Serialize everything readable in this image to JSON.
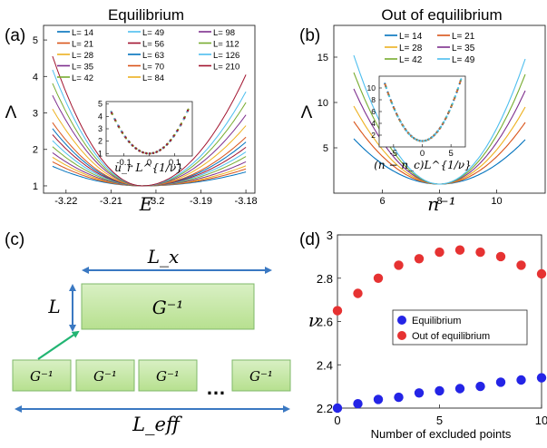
{
  "panels": {
    "a": {
      "tag": "(a)",
      "title": "Equilibrium",
      "xlabel": "E",
      "ylabel": "Λ",
      "inset_xlabel": "u_r L^{1/ν}"
    },
    "b": {
      "tag": "(b)",
      "title": "Out of equilibrium",
      "xlabel": "n⁻¹",
      "ylabel": "Λ",
      "inset_xlabel": "(n − n_c)L^{1/ν}"
    },
    "c": {
      "tag": "(c)",
      "g_inv": "G⁻¹",
      "lx": "L_x",
      "l": "L",
      "leff": "L_eff",
      "dots": "…"
    },
    "d": {
      "tag": "(d)",
      "xlabel": "Number of excluded points",
      "ylabel": "ν"
    }
  },
  "colors": [
    "#0072BD",
    "#D95319",
    "#EDB120",
    "#7E2F8E",
    "#77AC30",
    "#4DBEEE",
    "#A2142F",
    "#0072BD",
    "#D95319",
    "#EDB120",
    "#7E2F8E",
    "#77AC30",
    "#4DBEEE",
    "#A2142F"
  ],
  "chart_data": [
    {
      "id": "a",
      "type": "line",
      "title": "Equilibrium",
      "xlabel": "E",
      "ylabel": "Λ",
      "xlim": [
        -3.225,
        -3.178
      ],
      "ylim": [
        0.8,
        5.4
      ],
      "xticks": [
        -3.22,
        -3.21,
        -3.2,
        -3.19,
        -3.18
      ],
      "xticklabels": [
        "-3.22",
        "-3.21",
        "-3.2",
        "-3.19",
        "-3.18"
      ],
      "yticks": [
        1,
        2,
        3,
        4,
        5
      ],
      "yticklabels": [
        "1",
        "2",
        "3",
        "4",
        "5"
      ],
      "legend_position": "top",
      "series_labels": [
        "L= 14",
        "L= 21",
        "L= 28",
        "L= 35",
        "L= 42",
        "L= 49",
        "L= 56",
        "L= 63",
        "L= 70",
        "L= 84",
        "L= 98",
        "L= 112",
        "L= 126",
        "L= 210"
      ],
      "xc": -3.203,
      "lambda_c": 1.0,
      "edge_values": {
        "left": [
          1.65,
          1.8,
          1.95,
          2.1,
          2.3,
          2.5,
          2.7,
          2.9,
          3.1,
          3.55,
          4.0,
          4.4,
          4.85,
          5.3
        ],
        "right": [
          1.45,
          1.55,
          1.65,
          1.78,
          1.95,
          2.1,
          2.25,
          2.42,
          2.58,
          2.95,
          3.3,
          3.7,
          4.05,
          4.6
        ]
      },
      "inset": {
        "xlabel": "u_r L^{1/ν}",
        "xlim": [
          -0.17,
          0.17
        ],
        "ylim": [
          0.8,
          5.2
        ],
        "xticks": [
          -0.1,
          0,
          0.1
        ],
        "xticklabels": [
          "-0.1",
          "0",
          "0.1"
        ],
        "yticks": [
          1,
          2,
          3,
          4,
          5
        ],
        "yticklabels": [
          "1",
          "2",
          "3",
          "4",
          "5"
        ]
      }
    },
    {
      "id": "b",
      "type": "line",
      "title": "Out of equilibrium",
      "xlabel": "n⁻¹",
      "ylabel": "Λ",
      "xlim": [
        4.3,
        11.7
      ],
      "ylim": [
        0,
        18.5
      ],
      "xticks": [
        6,
        8,
        10
      ],
      "xticklabels": [
        "6",
        "8",
        "10"
      ],
      "yticks": [
        5,
        10,
        15
      ],
      "yticklabels": [
        "5",
        "10",
        "15"
      ],
      "legend_position": "top",
      "series_labels": [
        "L= 14",
        "L= 21",
        "L= 28",
        "L= 35",
        "L= 42",
        "L= 49"
      ],
      "xc": 8.0,
      "lambda_c": 1.0,
      "edge_values": {
        "left": [
          6.0,
          7.9,
          9.6,
          11.5,
          13.3,
          15.2
        ],
        "right": [
          5.9,
          7.8,
          9.5,
          11.3,
          13.1,
          14.8
        ]
      },
      "inset": {
        "xlabel": "(n − n_c)L^{1/ν}",
        "xlim": [
          -7.5,
          7.5
        ],
        "ylim": [
          0,
          12
        ],
        "xticks": [
          -5,
          0,
          5
        ],
        "xticklabels": [
          "-5",
          "0",
          "5"
        ],
        "yticks": [
          2,
          4,
          6,
          8,
          10
        ],
        "yticklabels": [
          "2",
          "4",
          "6",
          "8",
          "10"
        ]
      }
    },
    {
      "id": "d",
      "type": "scatter",
      "xlabel": "Number of excluded points",
      "ylabel": "ν",
      "xlim": [
        0,
        10
      ],
      "ylim": [
        2.2,
        3.0
      ],
      "xticks": [
        0,
        5,
        10
      ],
      "xticklabels": [
        "0",
        "5",
        "10"
      ],
      "yticks": [
        2.2,
        2.4,
        2.6,
        2.8,
        3.0
      ],
      "yticklabels": [
        "2.2",
        "2.4",
        "2.6",
        "2.8",
        "3"
      ],
      "legend_position": "center",
      "series": [
        {
          "name": "Equilibrium",
          "color": "#2424E6",
          "x": [
            0,
            1,
            2,
            3,
            4,
            5,
            6,
            7,
            8,
            9,
            10
          ],
          "y": [
            2.2,
            2.22,
            2.24,
            2.25,
            2.27,
            2.28,
            2.29,
            2.3,
            2.32,
            2.33,
            2.34
          ]
        },
        {
          "name": "Out of equilibrium",
          "color": "#E63232",
          "x": [
            0,
            1,
            2,
            3,
            4,
            5,
            6,
            7,
            8,
            9,
            10
          ],
          "y": [
            2.65,
            2.73,
            2.8,
            2.86,
            2.89,
            2.92,
            2.93,
            2.92,
            2.9,
            2.86,
            2.82
          ]
        }
      ]
    }
  ]
}
